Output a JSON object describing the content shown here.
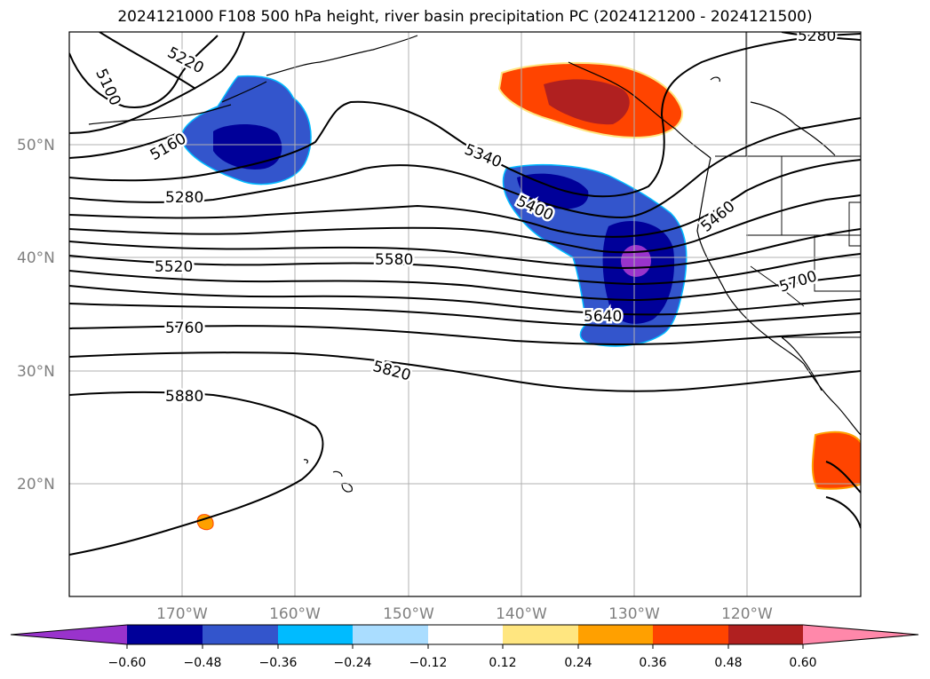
{
  "title": "2024121000 F108 500 hPa height, river basin precipitation PC (2024121200 - 2024121500)",
  "lat_labels": [
    "50°N",
    "40°N",
    "30°N",
    "20°N"
  ],
  "lon_labels": [
    "170°W",
    "160°W",
    "150°W",
    "140°W",
    "130°W",
    "120°W"
  ],
  "contour_labels": [
    "5100",
    "5220",
    "5160",
    "5280",
    "5340",
    "5400",
    "5460",
    "5520",
    "5580",
    "5640",
    "5700",
    "5760",
    "5820",
    "5880",
    "5280"
  ],
  "colorbar": {
    "ticks": [
      "−0.60",
      "−0.48",
      "−0.36",
      "−0.24",
      "−0.12",
      "0.12",
      "0.24",
      "0.36",
      "0.48",
      "0.60"
    ],
    "colors": [
      "#9933cc",
      "#000099",
      "#3355cc",
      "#00bbff",
      "#aaddff",
      "#ffffff",
      "#ffe680",
      "#ffa000",
      "#ff4400",
      "#b02020",
      "#ff88aa"
    ]
  }
}
